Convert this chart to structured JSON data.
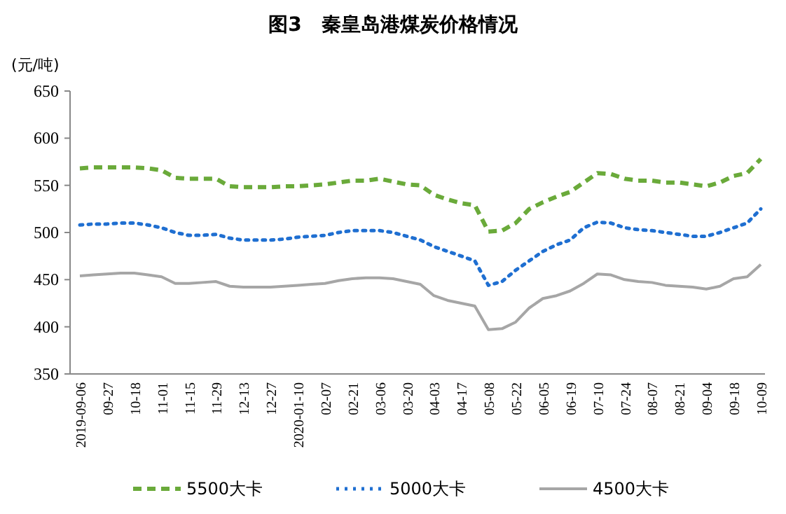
{
  "chart_data": {
    "type": "line",
    "title": "图3　秦皇岛港煤炭价格情况",
    "ylabel": "(元/吨)",
    "categories": [
      "2019-09-06",
      null,
      "09-27",
      null,
      "10-18",
      null,
      "11-01",
      null,
      "11-15",
      null,
      "11-29",
      null,
      "12-13",
      null,
      "12-27",
      null,
      "2020-01-10",
      null,
      "02-07",
      null,
      "02-21",
      null,
      "03-06",
      null,
      "03-20",
      null,
      "04-03",
      null,
      "04-17",
      null,
      "05-08",
      null,
      "05-22",
      null,
      "06-05",
      null,
      "06-19",
      null,
      "07-10",
      null,
      "07-24",
      null,
      "08-07",
      null,
      "08-21",
      null,
      "09-04",
      null,
      "09-18",
      null,
      "10-09"
    ],
    "series": [
      {
        "name": "5500大卡",
        "color": "#6aaa3a",
        "line_style": "dashed",
        "values": [
          568,
          569,
          569,
          569,
          569,
          568,
          566,
          558,
          557,
          557,
          557,
          549,
          548,
          548,
          548,
          549,
          549,
          550,
          551,
          553,
          555,
          555,
          557,
          554,
          551,
          550,
          540,
          535,
          531,
          529,
          501,
          502,
          510,
          525,
          532,
          538,
          543,
          553,
          563,
          562,
          557,
          555,
          555,
          553,
          553,
          551,
          549,
          553,
          560,
          563,
          578
        ]
      },
      {
        "name": "5000大卡",
        "color": "#1f6fd1",
        "line_style": "dotted",
        "values": [
          508,
          509,
          509,
          510,
          510,
          508,
          505,
          500,
          497,
          497,
          498,
          494,
          492,
          492,
          492,
          493,
          495,
          496,
          497,
          500,
          502,
          502,
          502,
          500,
          496,
          492,
          485,
          480,
          475,
          470,
          444,
          448,
          460,
          470,
          480,
          487,
          492,
          505,
          511,
          510,
          505,
          503,
          502,
          500,
          498,
          496,
          496,
          500,
          505,
          510,
          525
        ]
      },
      {
        "name": "4500大卡",
        "color": "#a6a6a6",
        "line_style": "solid",
        "values": [
          454,
          455,
          456,
          457,
          457,
          455,
          453,
          446,
          446,
          447,
          448,
          443,
          442,
          442,
          442,
          443,
          444,
          445,
          446,
          449,
          451,
          452,
          452,
          451,
          448,
          445,
          433,
          428,
          425,
          422,
          397,
          398,
          405,
          420,
          430,
          433,
          438,
          446,
          456,
          455,
          450,
          448,
          447,
          444,
          443,
          442,
          440,
          443,
          451,
          453,
          466
        ]
      }
    ],
    "ylim": [
      350,
      650
    ],
    "yticks": [
      350,
      400,
      450,
      500,
      550,
      600,
      650
    ],
    "grid": false,
    "legend": "bottom",
    "marker": "none"
  }
}
